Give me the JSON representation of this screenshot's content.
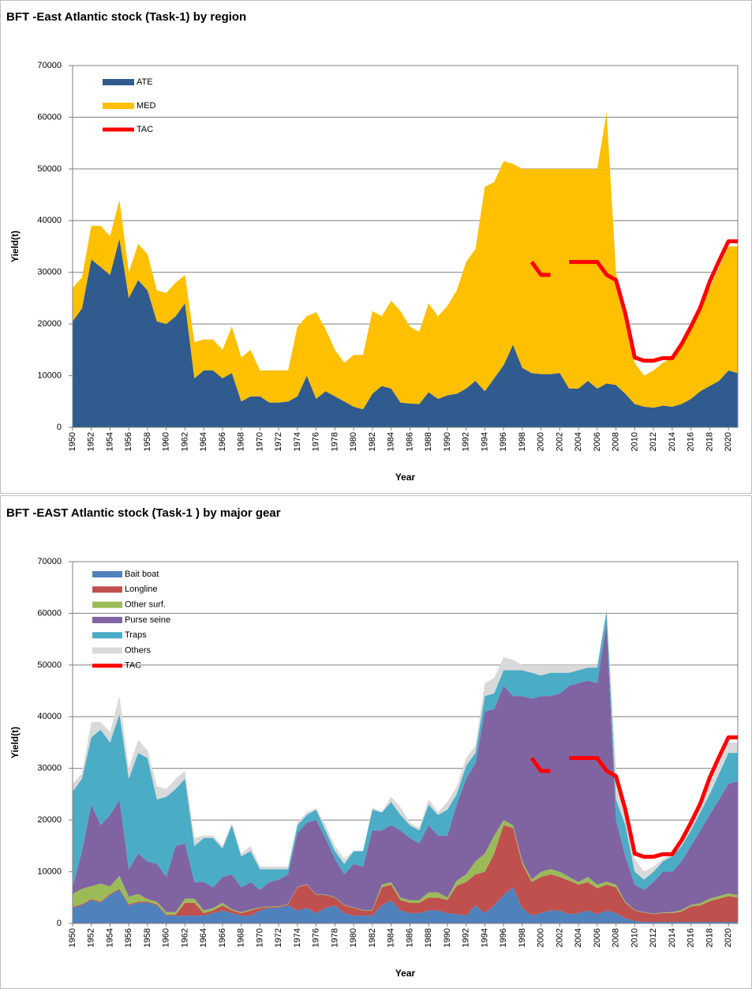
{
  "chart_data": [
    {
      "type": "area",
      "stacked": true,
      "title": "BFT -East Atlantic stock  (Task-1)  by region",
      "x_label": "Year",
      "y_label": "Yield(t)",
      "x": [
        1950,
        1951,
        1952,
        1953,
        1954,
        1955,
        1956,
        1957,
        1958,
        1959,
        1960,
        1961,
        1962,
        1963,
        1964,
        1965,
        1966,
        1967,
        1968,
        1969,
        1970,
        1971,
        1972,
        1973,
        1974,
        1975,
        1976,
        1977,
        1978,
        1979,
        1980,
        1981,
        1982,
        1983,
        1984,
        1985,
        1986,
        1987,
        1988,
        1989,
        1990,
        1991,
        1992,
        1993,
        1994,
        1995,
        1996,
        1997,
        1998,
        1999,
        2000,
        2001,
        2002,
        2003,
        2004,
        2005,
        2006,
        2007,
        2008,
        2009,
        2010,
        2011,
        2012,
        2013,
        2014,
        2015,
        2016,
        2017,
        2018,
        2019,
        2020,
        2021
      ],
      "xlim": [
        1950,
        2021
      ],
      "xticks": [
        1950,
        1952,
        1954,
        1956,
        1958,
        1960,
        1962,
        1964,
        1966,
        1968,
        1970,
        1972,
        1974,
        1976,
        1978,
        1980,
        1982,
        1984,
        1986,
        1988,
        1990,
        1992,
        1994,
        1996,
        1998,
        2000,
        2002,
        2004,
        2006,
        2008,
        2010,
        2012,
        2014,
        2016,
        2018,
        2020
      ],
      "ylim": [
        0,
        70000
      ],
      "yticks": [
        0,
        10000,
        20000,
        30000,
        40000,
        50000,
        60000,
        70000
      ],
      "grid": true,
      "legend": "upper left",
      "series": [
        {
          "name": "ATE",
          "color": "#2f5b8e",
          "values": [
            20500,
            23000,
            32500,
            31000,
            29500,
            36500,
            25000,
            28500,
            26500,
            20500,
            20000,
            21500,
            24000,
            9500,
            11000,
            11000,
            9500,
            10500,
            5000,
            6000,
            6000,
            4800,
            4800,
            5000,
            6000,
            10000,
            5500,
            7000,
            6000,
            5000,
            4000,
            3500,
            6500,
            8000,
            7500,
            4800,
            4600,
            4500,
            6800,
            5500,
            6200,
            6500,
            7500,
            9000,
            7000,
            9500,
            12000,
            16000,
            11500,
            10500,
            10300,
            10300,
            10500,
            7500,
            7500,
            9000,
            7500,
            8500,
            8200,
            6500,
            4500,
            4000,
            3800,
            4200,
            4000,
            4500,
            5500,
            7000,
            8000,
            9000,
            11000,
            10500
          ]
        },
        {
          "name": "MED",
          "color": "#ffc000",
          "values": [
            6500,
            6000,
            6500,
            8000,
            7500,
            7500,
            5000,
            7000,
            7000,
            6000,
            6000,
            6500,
            5500,
            7000,
            6000,
            6000,
            5500,
            9000,
            8500,
            9000,
            5000,
            6200,
            6200,
            6000,
            13500,
            11500,
            16800,
            12000,
            9000,
            7500,
            10000,
            10500,
            16000,
            13500,
            17000,
            17700,
            14900,
            14000,
            17200,
            16000,
            17300,
            20000,
            24500,
            25500,
            39500,
            38000,
            39500,
            35000,
            38500,
            39500,
            39700,
            39700,
            39500,
            42500,
            42500,
            41000,
            42500,
            52500,
            21800,
            14500,
            8000,
            6000,
            7200,
            8300,
            9500,
            11000,
            13500,
            15500,
            19000,
            22000,
            24000,
            24500
          ]
        }
      ],
      "lines": [
        {
          "name": "TAC",
          "color": "#ff0000",
          "values": [
            null,
            null,
            null,
            null,
            null,
            null,
            null,
            null,
            null,
            null,
            null,
            null,
            null,
            null,
            null,
            null,
            null,
            null,
            null,
            null,
            null,
            null,
            null,
            null,
            null,
            null,
            null,
            null,
            null,
            null,
            null,
            null,
            null,
            null,
            null,
            null,
            null,
            null,
            null,
            null,
            null,
            null,
            null,
            null,
            null,
            null,
            null,
            null,
            null,
            32000,
            29500,
            29500,
            null,
            32000,
            32000,
            32000,
            32000,
            29500,
            28500,
            22000,
            13500,
            12900,
            12900,
            13400,
            13400,
            16100,
            19500,
            23200,
            28200,
            32200,
            36000,
            36000
          ]
        }
      ]
    },
    {
      "type": "area",
      "stacked": true,
      "title": "BFT -EAST Atlantic stock  (Task-1 ) by major gear",
      "x_label": "Year",
      "y_label": "Yield(t)",
      "x": [
        1950,
        1951,
        1952,
        1953,
        1954,
        1955,
        1956,
        1957,
        1958,
        1959,
        1960,
        1961,
        1962,
        1963,
        1964,
        1965,
        1966,
        1967,
        1968,
        1969,
        1970,
        1971,
        1972,
        1973,
        1974,
        1975,
        1976,
        1977,
        1978,
        1979,
        1980,
        1981,
        1982,
        1983,
        1984,
        1985,
        1986,
        1987,
        1988,
        1989,
        1990,
        1991,
        1992,
        1993,
        1994,
        1995,
        1996,
        1997,
        1998,
        1999,
        2000,
        2001,
        2002,
        2003,
        2004,
        2005,
        2006,
        2007,
        2008,
        2009,
        2010,
        2011,
        2012,
        2013,
        2014,
        2015,
        2016,
        2017,
        2018,
        2019,
        2020,
        2021
      ],
      "xlim": [
        1950,
        2021
      ],
      "xticks": [
        1950,
        1952,
        1954,
        1956,
        1958,
        1960,
        1962,
        1964,
        1966,
        1968,
        1970,
        1972,
        1974,
        1976,
        1978,
        1980,
        1982,
        1984,
        1986,
        1988,
        1990,
        1992,
        1994,
        1996,
        1998,
        2000,
        2002,
        2004,
        2006,
        2008,
        2010,
        2012,
        2014,
        2016,
        2018,
        2020
      ],
      "ylim": [
        0,
        70000
      ],
      "yticks": [
        0,
        10000,
        20000,
        30000,
        40000,
        50000,
        60000,
        70000
      ],
      "grid": true,
      "legend": "upper left",
      "series": [
        {
          "name": "Bait boat",
          "color": "#4f81bd",
          "values": [
            3000,
            3500,
            4500,
            4000,
            5500,
            6500,
            3500,
            4000,
            4000,
            3500,
            1500,
            1500,
            1500,
            1500,
            1500,
            2000,
            2500,
            2000,
            1500,
            1500,
            2500,
            3000,
            3000,
            3500,
            2500,
            3000,
            2000,
            3000,
            3500,
            2000,
            1500,
            1500,
            1500,
            3500,
            4500,
            2500,
            2000,
            2000,
            2500,
            2500,
            2000,
            1800,
            1500,
            3500,
            2000,
            3500,
            5500,
            7000,
            3000,
            1500,
            2000,
            2500,
            2500,
            1800,
            2000,
            2500,
            1800,
            2500,
            2000,
            1000,
            500,
            300,
            300,
            300,
            300,
            300,
            300,
            300,
            300,
            300,
            300,
            300
          ]
        },
        {
          "name": "Longline",
          "color": "#c0504d",
          "values": [
            200,
            200,
            200,
            200,
            200,
            200,
            200,
            200,
            200,
            200,
            200,
            200,
            2500,
            2500,
            500,
            500,
            1000,
            500,
            500,
            1000,
            500,
            200,
            200,
            200,
            4500,
            4500,
            3500,
            2500,
            1500,
            1500,
            1500,
            1000,
            1000,
            3500,
            3000,
            2000,
            2000,
            2000,
            2500,
            2500,
            2500,
            5500,
            6500,
            6000,
            8000,
            10000,
            13500,
            11500,
            8500,
            6500,
            7000,
            7000,
            6500,
            6500,
            5500,
            5500,
            5000,
            5000,
            5000,
            3000,
            2000,
            1800,
            1500,
            1700,
            1700,
            2000,
            3000,
            3200,
            4000,
            4500,
            5000,
            4700
          ]
        },
        {
          "name": "Other surf.",
          "color": "#9bbb59",
          "values": [
            2500,
            3000,
            2500,
            3500,
            1500,
            2500,
            1500,
            1500,
            500,
            500,
            500,
            500,
            800,
            800,
            500,
            500,
            500,
            200,
            200,
            200,
            100,
            100,
            100,
            100,
            100,
            100,
            100,
            100,
            100,
            100,
            100,
            100,
            100,
            500,
            500,
            500,
            500,
            500,
            1000,
            1000,
            500,
            1000,
            1500,
            2500,
            3500,
            3500,
            1000,
            500,
            500,
            500,
            1000,
            1000,
            1000,
            700,
            500,
            1000,
            700,
            600,
            500,
            200,
            100,
            100,
            100,
            100,
            200,
            300,
            300,
            400,
            500,
            500,
            500,
            500
          ]
        },
        {
          "name": "Purse seine",
          "color": "#8064a2",
          "values": [
            1300,
            7300,
            15800,
            11300,
            13800,
            14800,
            5300,
            7800,
            7300,
            7300,
            6800,
            12800,
            10700,
            3200,
            5500,
            4000,
            5000,
            6800,
            4800,
            5300,
            3400,
            4700,
            5200,
            5700,
            10400,
            11900,
            14400,
            10900,
            7400,
            5900,
            8400,
            8400,
            15400,
            10500,
            11000,
            13000,
            12000,
            11000,
            13000,
            11000,
            12000,
            14700,
            18500,
            19000,
            27500,
            24500,
            26000,
            25000,
            32000,
            35000,
            34000,
            33500,
            34500,
            37000,
            38500,
            38000,
            39000,
            49900,
            12500,
            8800,
            4900,
            4300,
            6100,
            7900,
            7800,
            9400,
            11400,
            14100,
            16200,
            18700,
            21200,
            22000
          ]
        },
        {
          "name": "Traps",
          "color": "#4bacc6",
          "values": [
            18500,
            14000,
            13000,
            18500,
            14000,
            16500,
            17500,
            19500,
            20000,
            12500,
            15500,
            11000,
            12500,
            7000,
            8500,
            9500,
            5500,
            9500,
            6000,
            6000,
            4000,
            2500,
            2000,
            1000,
            1500,
            1500,
            2000,
            1500,
            1500,
            2000,
            2500,
            3000,
            4000,
            3500,
            4500,
            3000,
            2500,
            2500,
            4000,
            4000,
            5000,
            2000,
            2500,
            2000,
            3000,
            3000,
            3000,
            5000,
            5000,
            5000,
            4000,
            4500,
            4000,
            2500,
            2500,
            2500,
            3000,
            2500,
            4000,
            6000,
            2500,
            2000,
            2000,
            2000,
            3000,
            3000,
            3000,
            3500,
            4000,
            5000,
            6000,
            5500
          ]
        },
        {
          "name": "Others",
          "color": "#d9d9d9",
          "values": [
            1500,
            1000,
            3000,
            1500,
            2000,
            3500,
            2000,
            2500,
            1500,
            2500,
            1500,
            2000,
            1500,
            1500,
            500,
            500,
            500,
            500,
            500,
            1000,
            500,
            500,
            500,
            500,
            500,
            500,
            300,
            1000,
            1000,
            1000,
            0,
            0,
            500,
            0,
            1000,
            1500,
            500,
            500,
            1000,
            500,
            1500,
            1500,
            1500,
            1500,
            2500,
            3000,
            2500,
            2000,
            1000,
            1500,
            2000,
            1500,
            1500,
            1500,
            1000,
            500,
            500,
            500,
            6000,
            2000,
            2500,
            1500,
            1000,
            500,
            500,
            500,
            1000,
            1000,
            2000,
            2000,
            2000,
            2000
          ]
        }
      ],
      "lines": [
        {
          "name": "TAC",
          "color": "#ff0000",
          "values": [
            null,
            null,
            null,
            null,
            null,
            null,
            null,
            null,
            null,
            null,
            null,
            null,
            null,
            null,
            null,
            null,
            null,
            null,
            null,
            null,
            null,
            null,
            null,
            null,
            null,
            null,
            null,
            null,
            null,
            null,
            null,
            null,
            null,
            null,
            null,
            null,
            null,
            null,
            null,
            null,
            null,
            null,
            null,
            null,
            null,
            null,
            null,
            null,
            null,
            32000,
            29500,
            29500,
            null,
            32000,
            32000,
            32000,
            32000,
            29500,
            28500,
            22000,
            13500,
            12900,
            12900,
            13400,
            13400,
            16100,
            19500,
            23200,
            28200,
            32200,
            36000,
            36000
          ]
        }
      ]
    }
  ]
}
